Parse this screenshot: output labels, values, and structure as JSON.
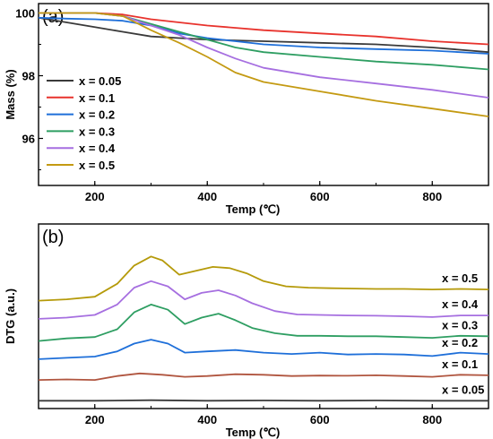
{
  "chart_data": [
    {
      "type": "line",
      "panel_label": "(a)",
      "xlabel": "Temp (℃)",
      "ylabel": "Mass (%)",
      "xlim": [
        100,
        900
      ],
      "ylim": [
        94.5,
        100.3
      ],
      "x_ticks": [
        "200",
        "400",
        "600",
        "800"
      ],
      "y_ticks": [
        "96",
        "98",
        "100"
      ],
      "legend_position": "left",
      "series": [
        {
          "name": "x = 0.05",
          "color": "#3a3a3a",
          "x": [
            100,
            150,
            200,
            250,
            300,
            350,
            400,
            500,
            600,
            700,
            800,
            900
          ],
          "y": [
            99.85,
            99.7,
            99.55,
            99.4,
            99.25,
            99.2,
            99.15,
            99.1,
            99.05,
            99.0,
            98.9,
            98.75
          ]
        },
        {
          "name": "x = 0.1",
          "color": "#e8332d",
          "x": [
            100,
            200,
            250,
            300,
            350,
            400,
            500,
            600,
            700,
            800,
            900
          ],
          "y": [
            100.0,
            100.0,
            99.95,
            99.8,
            99.7,
            99.6,
            99.45,
            99.35,
            99.25,
            99.1,
            99.0
          ]
        },
        {
          "name": "x = 0.2",
          "color": "#1e6fd9",
          "x": [
            100,
            150,
            200,
            250,
            300,
            350,
            400,
            450,
            500,
            600,
            700,
            800,
            900
          ],
          "y": [
            99.85,
            99.82,
            99.8,
            99.75,
            99.6,
            99.35,
            99.2,
            99.1,
            99.0,
            98.9,
            98.85,
            98.8,
            98.7
          ]
        },
        {
          "name": "x = 0.3",
          "color": "#2e9e62",
          "x": [
            100,
            200,
            250,
            300,
            350,
            400,
            450,
            500,
            600,
            700,
            800,
            900
          ],
          "y": [
            100.0,
            100.0,
            99.9,
            99.65,
            99.4,
            99.15,
            98.9,
            98.75,
            98.6,
            98.45,
            98.35,
            98.2
          ]
        },
        {
          "name": "x = 0.4",
          "color": "#a66fe0",
          "x": [
            100,
            200,
            250,
            300,
            350,
            400,
            450,
            500,
            600,
            700,
            800,
            900
          ],
          "y": [
            100.0,
            100.0,
            99.9,
            99.6,
            99.3,
            98.9,
            98.55,
            98.25,
            97.95,
            97.75,
            97.55,
            97.3
          ]
        },
        {
          "name": "x = 0.5",
          "color": "#c49a12",
          "x": [
            100,
            200,
            250,
            300,
            350,
            400,
            450,
            500,
            600,
            700,
            800,
            900
          ],
          "y": [
            100.0,
            100.0,
            99.9,
            99.45,
            99.05,
            98.6,
            98.1,
            97.8,
            97.5,
            97.2,
            96.95,
            96.7
          ]
        }
      ]
    },
    {
      "type": "line",
      "panel_label": "(b)",
      "xlabel": "Temp (℃)",
      "ylabel": "DTG (a.u.)",
      "xlim": [
        100,
        900
      ],
      "ylim": [
        -0.3,
        6.8
      ],
      "x_ticks": [
        "200",
        "400",
        "600",
        "800"
      ],
      "y_ticks": [],
      "label_position": "right",
      "series": [
        {
          "name": "x = 0.05",
          "color": "#3a3a3a",
          "x": [
            100,
            200,
            300,
            400,
            500,
            600,
            700,
            800,
            900
          ],
          "y": [
            0.0,
            0.0,
            0.02,
            0.0,
            0.01,
            0.0,
            0.01,
            0.0,
            0.0
          ]
        },
        {
          "name": "x = 0.1",
          "color": "#b0553f",
          "x": [
            100,
            150,
            200,
            240,
            280,
            320,
            360,
            400,
            450,
            500,
            550,
            600,
            650,
            700,
            750,
            800,
            850,
            900
          ],
          "y": [
            0.8,
            0.82,
            0.8,
            0.95,
            1.05,
            1.0,
            0.92,
            0.95,
            1.02,
            1.0,
            0.95,
            0.97,
            0.96,
            0.98,
            0.95,
            0.92,
            1.0,
            0.98
          ]
        },
        {
          "name": "x = 0.2",
          "color": "#1e6fd9",
          "x": [
            100,
            150,
            200,
            240,
            270,
            300,
            330,
            360,
            400,
            450,
            500,
            550,
            600,
            650,
            700,
            750,
            800,
            850,
            900
          ],
          "y": [
            1.6,
            1.65,
            1.7,
            1.9,
            2.2,
            2.35,
            2.2,
            1.85,
            1.9,
            1.95,
            1.85,
            1.8,
            1.85,
            1.78,
            1.8,
            1.78,
            1.72,
            1.85,
            1.8
          ]
        },
        {
          "name": "x = 0.3",
          "color": "#2e9e62",
          "x": [
            100,
            150,
            200,
            240,
            270,
            300,
            330,
            360,
            390,
            420,
            450,
            480,
            520,
            560,
            600,
            650,
            700,
            750,
            800,
            850,
            900
          ],
          "y": [
            2.3,
            2.4,
            2.45,
            2.75,
            3.4,
            3.7,
            3.5,
            2.95,
            3.2,
            3.35,
            3.1,
            2.8,
            2.6,
            2.5,
            2.5,
            2.48,
            2.48,
            2.45,
            2.42,
            2.5,
            2.48
          ]
        },
        {
          "name": "x = 0.4",
          "color": "#a66fe0",
          "x": [
            100,
            150,
            200,
            240,
            270,
            300,
            330,
            360,
            390,
            420,
            450,
            480,
            520,
            560,
            600,
            650,
            700,
            750,
            800,
            850,
            900
          ],
          "y": [
            3.15,
            3.2,
            3.3,
            3.7,
            4.35,
            4.6,
            4.4,
            3.9,
            4.15,
            4.25,
            4.05,
            3.75,
            3.45,
            3.32,
            3.3,
            3.28,
            3.27,
            3.25,
            3.22,
            3.28,
            3.28
          ]
        },
        {
          "name": "x = 0.5",
          "color": "#b59a0a",
          "x": [
            100,
            150,
            200,
            240,
            270,
            300,
            320,
            350,
            380,
            410,
            440,
            470,
            500,
            540,
            580,
            620,
            700,
            750,
            800,
            850,
            900
          ],
          "y": [
            3.85,
            3.9,
            4.0,
            4.5,
            5.2,
            5.55,
            5.4,
            4.85,
            5.0,
            5.15,
            5.1,
            4.9,
            4.6,
            4.4,
            4.35,
            4.33,
            4.3,
            4.3,
            4.28,
            4.3,
            4.28
          ]
        }
      ]
    }
  ]
}
